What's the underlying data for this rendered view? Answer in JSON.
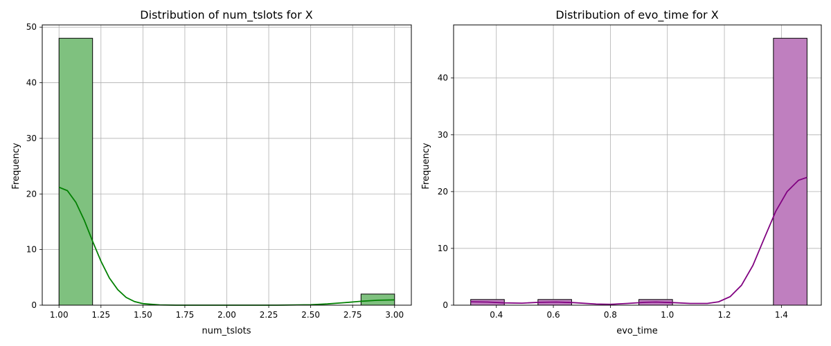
{
  "chart_data": [
    {
      "type": "bar",
      "title": "Distribution of num_tslots for X",
      "xlabel": "num_tslots",
      "ylabel": "Frequency",
      "xlim": [
        0.9,
        3.1
      ],
      "ylim": [
        0,
        50.4
      ],
      "xticks": [
        "1.00",
        "1.25",
        "1.50",
        "1.75",
        "2.00",
        "2.25",
        "2.50",
        "2.75",
        "3.00"
      ],
      "yticks": [
        "0",
        "10",
        "20",
        "30",
        "40",
        "50"
      ],
      "bins": [
        {
          "x0": 1.0,
          "x1": 1.2,
          "count": 48
        },
        {
          "x0": 2.8,
          "x1": 3.0,
          "count": 2
        }
      ],
      "kde": [
        [
          1.0,
          21.2
        ],
        [
          1.05,
          20.6
        ],
        [
          1.1,
          18.5
        ],
        [
          1.15,
          15.3
        ],
        [
          1.2,
          11.5
        ],
        [
          1.25,
          7.9
        ],
        [
          1.3,
          4.9
        ],
        [
          1.35,
          2.8
        ],
        [
          1.4,
          1.4
        ],
        [
          1.45,
          0.65
        ],
        [
          1.5,
          0.28
        ],
        [
          1.6,
          0.05
        ],
        [
          1.7,
          0.0
        ],
        [
          2.0,
          0.0
        ],
        [
          2.3,
          0.0
        ],
        [
          2.5,
          0.08
        ],
        [
          2.6,
          0.22
        ],
        [
          2.7,
          0.45
        ],
        [
          2.8,
          0.7
        ],
        [
          2.9,
          0.88
        ],
        [
          3.0,
          0.95
        ]
      ],
      "colors": {
        "bar": "#7fc17f",
        "edge": "#000000",
        "line": "#008000"
      },
      "grid": true
    },
    {
      "type": "bar",
      "title": "Distribution of evo_time for X",
      "xlabel": "evo_time",
      "ylabel": "Frequency",
      "xlim": [
        0.25,
        1.54
      ],
      "ylim": [
        0,
        49.35
      ],
      "xticks": [
        "0.4",
        "0.6",
        "0.8",
        "1.0",
        "1.2",
        "1.4"
      ],
      "yticks": [
        "0",
        "10",
        "20",
        "30",
        "40"
      ],
      "bins": [
        {
          "x0": 0.31,
          "x1": 0.428,
          "count": 1
        },
        {
          "x0": 0.546,
          "x1": 0.664,
          "count": 1
        },
        {
          "x0": 0.9,
          "x1": 1.018,
          "count": 1
        },
        {
          "x0": 1.372,
          "x1": 1.49,
          "count": 47
        }
      ],
      "kde": [
        [
          0.31,
          0.6
        ],
        [
          0.37,
          0.55
        ],
        [
          0.43,
          0.4
        ],
        [
          0.49,
          0.35
        ],
        [
          0.55,
          0.5
        ],
        [
          0.61,
          0.55
        ],
        [
          0.67,
          0.45
        ],
        [
          0.75,
          0.2
        ],
        [
          0.8,
          0.15
        ],
        [
          0.86,
          0.3
        ],
        [
          0.92,
          0.5
        ],
        [
          0.96,
          0.55
        ],
        [
          1.02,
          0.45
        ],
        [
          1.08,
          0.3
        ],
        [
          1.14,
          0.3
        ],
        [
          1.18,
          0.6
        ],
        [
          1.22,
          1.5
        ],
        [
          1.26,
          3.5
        ],
        [
          1.3,
          7.0
        ],
        [
          1.34,
          11.8
        ],
        [
          1.38,
          16.5
        ],
        [
          1.42,
          20.0
        ],
        [
          1.46,
          22.0
        ],
        [
          1.49,
          22.5
        ]
      ],
      "colors": {
        "bar": "#bf7fbf",
        "edge": "#000000",
        "line": "#800080"
      },
      "grid": true
    }
  ]
}
